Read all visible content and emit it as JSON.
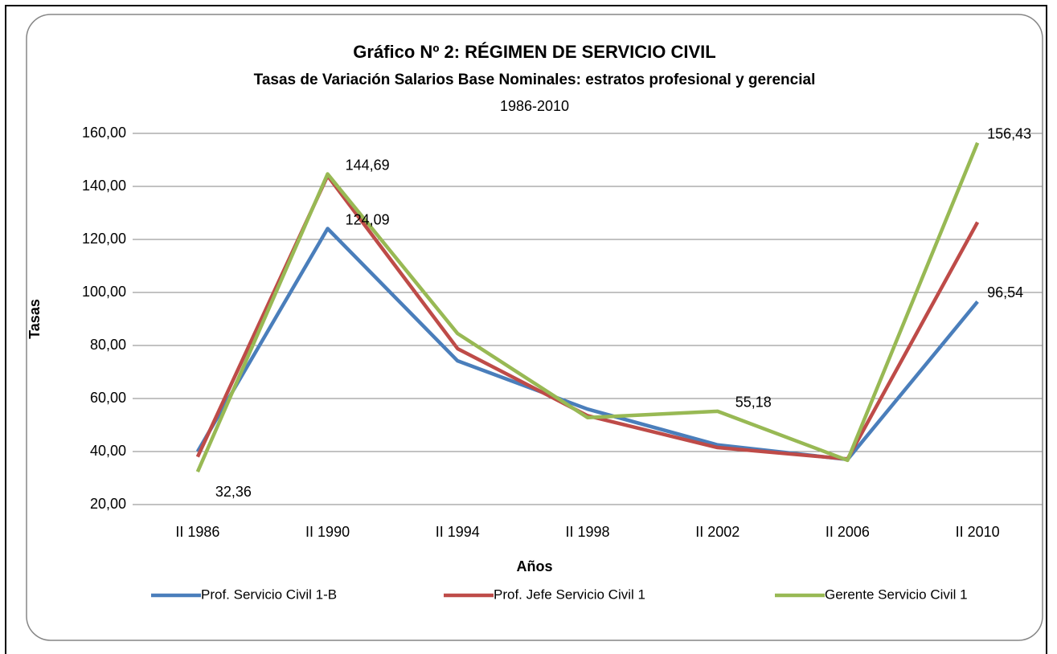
{
  "chart_data": {
    "type": "line",
    "title": "Gráfico Nº 2: RÉGIMEN DE SERVICIO CIVIL",
    "subtitle": "Tasas de Variación Salarios Base Nominales: estratos profesional y gerencial",
    "period": "1986-2010",
    "x_label": "Años",
    "y_label": "Tasas",
    "categories": [
      "II 1986",
      "II 1990",
      "II 1994",
      "II 1998",
      "II 2002",
      "II 2006",
      "II 2010"
    ],
    "series": [
      {
        "name": "Prof. Servicio Civil 1-B",
        "color": "#4a7ebb",
        "values": [
          40,
          124.09,
          74.2,
          56,
          42.5,
          37,
          96.54
        ],
        "value_labels": [
          null,
          "124,09",
          null,
          null,
          null,
          null,
          "96,54"
        ]
      },
      {
        "name": "Prof. Jefe Servicio Civil 1",
        "color": "#be4b48",
        "values": [
          38,
          144,
          78.8,
          53.5,
          41.5,
          37.2,
          126.5
        ],
        "value_labels": [
          null,
          null,
          null,
          null,
          null,
          null,
          null
        ]
      },
      {
        "name": "Gerente Servicio Civil 1",
        "color": "#98b954",
        "values": [
          32.36,
          144.69,
          84.5,
          52.8,
          55.18,
          36.7,
          156.43
        ],
        "value_labels": [
          "32,36",
          "144,69",
          null,
          null,
          "55,18",
          null,
          "156,43"
        ]
      }
    ],
    "ylim": [
      20,
      160
    ],
    "yticks": [
      {
        "value": 20,
        "label": "20,00"
      },
      {
        "value": 40,
        "label": "40,00"
      },
      {
        "value": 60,
        "label": "60,00"
      },
      {
        "value": 80,
        "label": "80,00"
      },
      {
        "value": 100,
        "label": "100,00"
      },
      {
        "value": 120,
        "label": "120,00"
      },
      {
        "value": 140,
        "label": "140,00"
      },
      {
        "value": 160,
        "label": "160,00"
      }
    ],
    "grid": true,
    "legend": "bottom"
  }
}
